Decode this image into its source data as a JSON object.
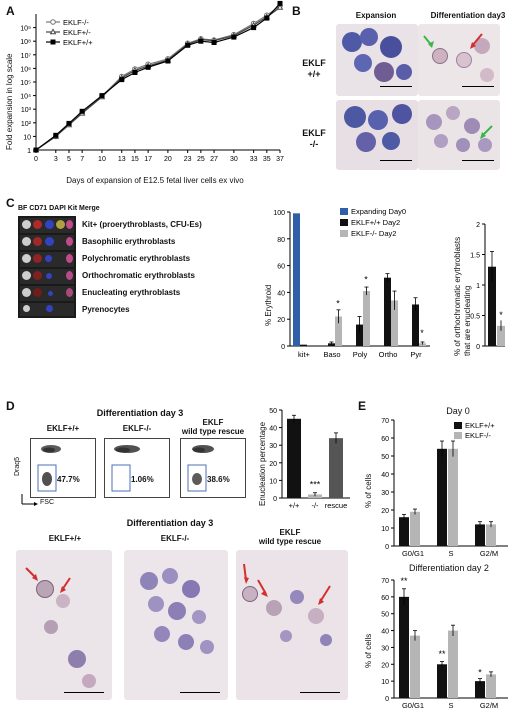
{
  "panels": {
    "A": "A",
    "B": "B",
    "C": "C",
    "D": "D",
    "E": "E"
  },
  "panel_a": {
    "ylabel": "Fold expansion in log scale",
    "xlabel": "Days of expansion of E12.5 fetal liver cells ex vivo",
    "yticks": [
      "1",
      "10",
      "10²",
      "10³",
      "10⁴",
      "10⁵",
      "10⁶",
      "10⁷",
      "10⁸",
      "10⁹"
    ],
    "legend": [
      "EKLF-/-",
      "EKLF+/-",
      "EKLF+/+"
    ]
  },
  "panel_b": {
    "col1": "Expansion",
    "col2": "Differentiation day3",
    "row1_l1": "EKLF",
    "row1_l2": "+/+",
    "row2_l1": "EKLF",
    "row2_l2": "-/-"
  },
  "panel_c": {
    "header": "BF CD71 DAPI Kit Merge",
    "stages": [
      "Kit+ (proerythroblasts, CFU-Es)",
      "Basophilic erythroblasts",
      "Polychromatic erythroblasts",
      "Orthochromatic erythroblasts",
      "Enucleating erythroblasts",
      "Pyrenocytes"
    ],
    "ylabel": "% Erythroid",
    "ylabel2_l1": "% of orthochromatic erythroblasts",
    "ylabel2_l2": "that are enucleating",
    "legend": [
      "Expanding Day0",
      "EKLF+/+ Day2",
      "EKLF-/- Day2"
    ],
    "yticks": [
      "0",
      "20",
      "40",
      "60",
      "80",
      "100"
    ],
    "yticks2": [
      "0",
      "0.5",
      "1",
      "1.5",
      "2"
    ]
  },
  "panel_d": {
    "title_top": "Differentiation day 3",
    "flow_titles": [
      "EKLF+/+",
      "EKLF-/-",
      "EKLF"
    ],
    "flow_title3_l2": "wild type rescue",
    "percents": [
      "47.7%",
      "1.06%",
      "38.6%"
    ],
    "yaxis": "Draq5",
    "xaxis": "FSC",
    "bar_ylabel": "Enucleation percentage",
    "bar_yticks": [
      "0",
      "10",
      "20",
      "30",
      "40",
      "50"
    ],
    "bar_xlabels": [
      "+/+",
      "-/-",
      "rescue"
    ],
    "title_bottom": "Differentiation day 3",
    "photo_titles": [
      "EKLF+/+",
      "EKLF-/-",
      "EKLF"
    ],
    "photo_title3_l2": "wild type rescue"
  },
  "panel_e": {
    "title_top": "Day 0",
    "title_bottom": "Differentiation day 2",
    "legend": [
      "EKLF+/+",
      "EKLF-/-"
    ],
    "ylabel": "% of cells",
    "yticks": [
      "0",
      "10",
      "20",
      "30",
      "40",
      "50",
      "60",
      "70"
    ],
    "xlabels": [
      "G0/G1",
      "S",
      "G2/M"
    ]
  },
  "colors": {
    "black": "#111111",
    "gray": "#b5b5b5",
    "blue": "#2f5fa8",
    "dark_gray": "#555555"
  },
  "chart_data": [
    {
      "type": "line",
      "title": "",
      "xlabel": "Days of expansion of E12.5 fetal liver cells ex vivo",
      "ylabel": "Fold expansion in log scale",
      "x": [
        0,
        3,
        5,
        7,
        10,
        13,
        15,
        17,
        20,
        23,
        25,
        27,
        30,
        33,
        35,
        37
      ],
      "ylim": [
        1,
        10000000000.0
      ],
      "yscale": "log",
      "series": [
        {
          "name": "EKLF-/-",
          "values": [
            1,
            10,
            80,
            600,
            9000,
            250000,
            900000,
            2000000,
            5000000,
            70000000,
            150000000,
            120000000,
            300000000,
            2000000000,
            8000000000,
            40000000000
          ]
        },
        {
          "name": "EKLF+/-",
          "values": [
            1,
            10,
            70,
            500,
            8000,
            200000,
            700000,
            1500000,
            4000000,
            60000000,
            130000000,
            110000000,
            250000000,
            1500000000,
            6000000000,
            30000000000
          ]
        },
        {
          "name": "EKLF+/+",
          "values": [
            1,
            12,
            90,
            700,
            10000,
            150000,
            500000,
            1200000,
            3500000,
            50000000,
            100000000,
            80000000,
            200000000,
            1000000000,
            5000000000,
            60000000000
          ]
        }
      ],
      "legend": "top-left"
    },
    {
      "type": "bar",
      "ylabel": "% Erythroid",
      "categories": [
        "kit+",
        "Baso",
        "Poly",
        "Ortho",
        "Pyr"
      ],
      "ylim": [
        0,
        100
      ],
      "series": [
        {
          "name": "Expanding Day0",
          "values": [
            99,
            0,
            0,
            0,
            0
          ]
        },
        {
          "name": "EKLF+/+ Day2",
          "values": [
            1,
            2,
            16,
            51,
            31
          ]
        },
        {
          "name": "EKLF-/- Day2",
          "values": [
            0,
            22,
            41,
            34,
            2
          ]
        }
      ],
      "annotations": [
        "*",
        "*",
        "*"
      ]
    },
    {
      "type": "bar",
      "ylabel": "% of orthochromatic erythroblasts that are enucleating",
      "categories": [
        ""
      ],
      "ylim": [
        0,
        2
      ],
      "series": [
        {
          "name": "EKLF+/+ Day2",
          "values": [
            1.3
          ]
        },
        {
          "name": "EKLF-/- Day2",
          "values": [
            0.33
          ]
        }
      ],
      "annotations": [
        "*"
      ]
    },
    {
      "type": "bar",
      "ylabel": "Enucleation percentage",
      "categories": [
        "+/+",
        "-/-",
        "rescue"
      ],
      "ylim": [
        0,
        50
      ],
      "values": [
        45,
        2,
        34
      ],
      "annotations": [
        "***"
      ]
    },
    {
      "type": "bar",
      "title": "Day 0",
      "ylabel": "% of cells",
      "categories": [
        "G0/G1",
        "S",
        "G2/M"
      ],
      "ylim": [
        0,
        70
      ],
      "series": [
        {
          "name": "EKLF+/+",
          "values": [
            16,
            54,
            12
          ]
        },
        {
          "name": "EKLF-/-",
          "values": [
            19,
            54,
            12
          ]
        }
      ]
    },
    {
      "type": "bar",
      "title": "Differentiation day 2",
      "ylabel": "% of cells",
      "categories": [
        "G0/G1",
        "S",
        "G2/M"
      ],
      "ylim": [
        0,
        70
      ],
      "series": [
        {
          "name": "EKLF+/+",
          "values": [
            60,
            20,
            10
          ]
        },
        {
          "name": "EKLF-/-",
          "values": [
            37,
            40,
            14
          ]
        }
      ],
      "annotations": [
        "**",
        "**",
        "*"
      ]
    }
  ]
}
